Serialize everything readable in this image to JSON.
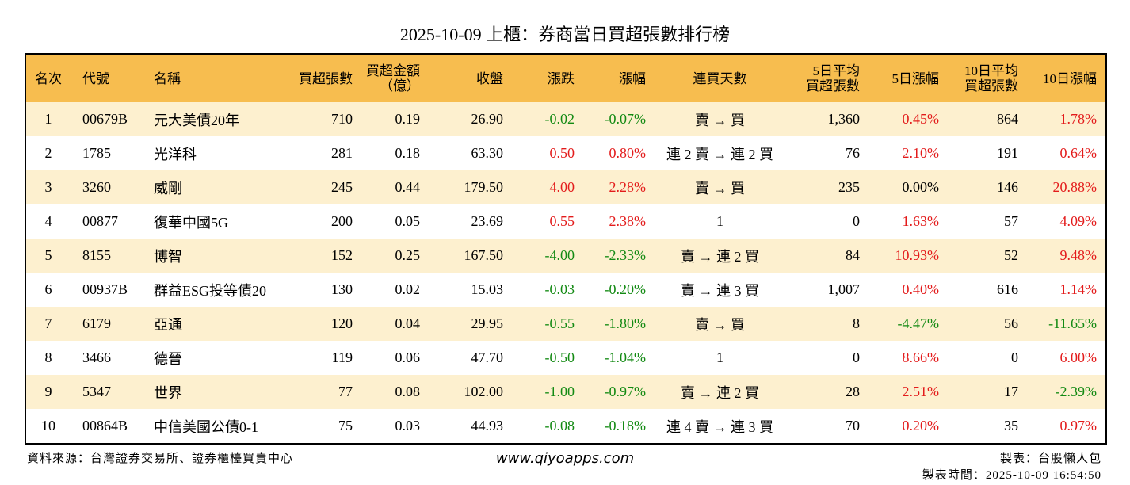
{
  "title": "2025-10-09 上櫃：券商當日買超張數排行榜",
  "table": {
    "header": [
      "名次",
      "代號",
      "名稱",
      "買超張數",
      "買超金額\n（億）",
      "收盤",
      "漲跌",
      "漲幅",
      "連買天數",
      "5日平均\n買超張數",
      "5日漲幅",
      "10日平均\n買超張數",
      "10日漲幅"
    ],
    "rows": [
      [
        "1",
        "00679B",
        "元大美債20年",
        "710",
        "0.19",
        "26.90",
        "-0.02",
        "-0.07%",
        "賣 → 買",
        "1,360",
        "0.45%",
        "864",
        "1.78%"
      ],
      [
        "2",
        "1785",
        "光洋科",
        "281",
        "0.18",
        "63.30",
        "0.50",
        "0.80%",
        "連 2 賣 → 連 2 買",
        "76",
        "2.10%",
        "191",
        "0.64%"
      ],
      [
        "3",
        "3260",
        "威剛",
        "245",
        "0.44",
        "179.50",
        "4.00",
        "2.28%",
        "賣 → 買",
        "235",
        "0.00%",
        "146",
        "20.88%"
      ],
      [
        "4",
        "00877",
        "復華中國5G",
        "200",
        "0.05",
        "23.69",
        "0.55",
        "2.38%",
        "1",
        "0",
        "1.63%",
        "57",
        "4.09%"
      ],
      [
        "5",
        "8155",
        "博智",
        "152",
        "0.25",
        "167.50",
        "-4.00",
        "-2.33%",
        "賣 → 連 2 買",
        "84",
        "10.93%",
        "52",
        "9.48%"
      ],
      [
        "6",
        "00937B",
        "群益ESG投等債20",
        "130",
        "0.02",
        "15.03",
        "-0.03",
        "-0.20%",
        "賣 → 連 3 買",
        "1,007",
        "0.40%",
        "616",
        "1.14%"
      ],
      [
        "7",
        "6179",
        "亞通",
        "120",
        "0.04",
        "29.95",
        "-0.55",
        "-1.80%",
        "賣 → 買",
        "8",
        "-4.47%",
        "56",
        "-11.65%"
      ],
      [
        "8",
        "3466",
        "德晉",
        "119",
        "0.06",
        "47.70",
        "-0.50",
        "-1.04%",
        "1",
        "0",
        "8.66%",
        "0",
        "6.00%"
      ],
      [
        "9",
        "5347",
        "世界",
        "77",
        "0.08",
        "102.00",
        "-1.00",
        "-0.97%",
        "賣 → 連 2 買",
        "28",
        "2.51%",
        "17",
        "-2.39%"
      ],
      [
        "10",
        "00864B",
        "中信美國公債0-1",
        "75",
        "0.03",
        "44.93",
        "-0.08",
        "-0.18%",
        "連 4 賣 → 連 3 買",
        "70",
        "0.20%",
        "35",
        "0.97%"
      ]
    ]
  },
  "footer": {
    "source": "資料來源：台灣證券交易所、證券櫃檯買賣中心",
    "website": "www.qiyoapps.com",
    "maker": "製表：台股懶人包",
    "time": "製表時間：2025-10-09 16:54:50"
  }
}
